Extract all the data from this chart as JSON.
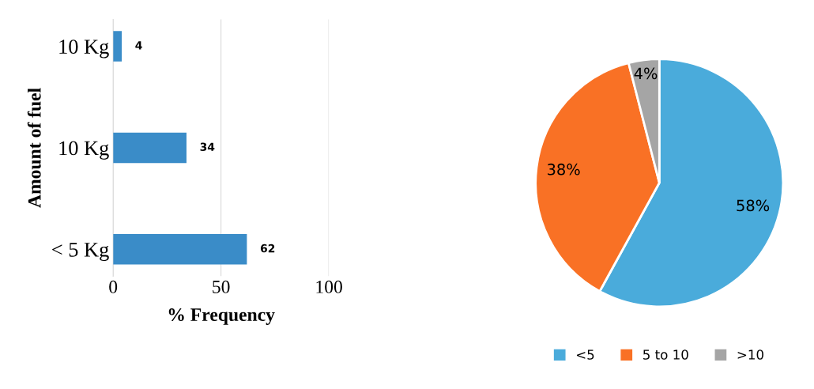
{
  "chart_data": [
    {
      "type": "bar",
      "orientation": "horizontal",
      "categories": [
        "10 Kg",
        "10 Kg",
        "< 5 Kg"
      ],
      "values": [
        4,
        34,
        62
      ],
      "color": "#3a8cc8",
      "xlim": [
        0,
        100
      ],
      "xticks": [
        0,
        50,
        100
      ],
      "xlabel": "% Frequency",
      "ylabel": "Amount of fuel",
      "grid": "x",
      "data_labels": true,
      "legend": false
    },
    {
      "type": "pie",
      "categories": [
        "<5",
        "5 to 10",
        ">10"
      ],
      "values": [
        58,
        38,
        4
      ],
      "colors": [
        "#4aabdb",
        "#f97125",
        "#a5a5a5"
      ],
      "value_labels": [
        "58%",
        "38%",
        "4%"
      ],
      "legend": "bottom"
    }
  ]
}
